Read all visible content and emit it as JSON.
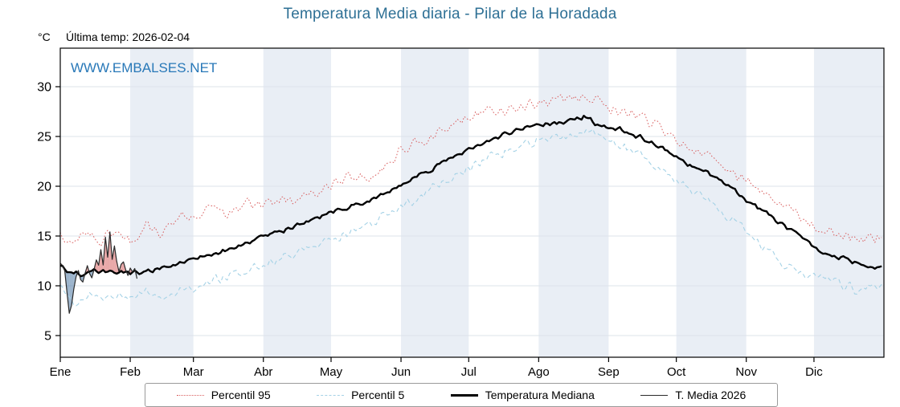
{
  "page": {
    "title": "Temperatura Media diaria - Pilar de la Horadada",
    "unit_label": "°C",
    "last_temp": "Última temp: 2026-02-04",
    "watermark": "WWW.EMBALSES.NET"
  },
  "colors": {
    "title": "#2e7095",
    "watermark": "#2878b8",
    "p95": "#d95f5f",
    "p5": "#a5d2e6",
    "median": "#000000",
    "t2026": "#2a2a2a",
    "band": "#e9eef5",
    "grid": "#dde3ea",
    "fill_above": "rgba(214,96,96,0.55)",
    "fill_below": "rgba(90,130,170,0.6)"
  },
  "chart_data": {
    "type": "line",
    "title": "Temperatura Media diaria - Pilar de la Horadada",
    "ylabel": "°C",
    "x_unit": "day_of_year",
    "xlim_days": [
      0,
      365
    ],
    "ylim": [
      2.8,
      33.9
    ],
    "yticks": [
      5,
      10,
      15,
      20,
      25,
      30
    ],
    "months": [
      "Ene",
      "Feb",
      "Mar",
      "Abr",
      "May",
      "Jun",
      "Jul",
      "Ago",
      "Sep",
      "Oct",
      "Nov",
      "Dic"
    ],
    "month_start_days": [
      0,
      31,
      59,
      90,
      120,
      151,
      181,
      212,
      243,
      273,
      304,
      334
    ],
    "legend_position": "bottom",
    "grid": true,
    "series": [
      {
        "name": "Percentil 95",
        "key": "p95",
        "style": "dotted",
        "range": [
          0,
          364
        ],
        "noise": 0.7,
        "anchors": [
          [
            0,
            15.2
          ],
          [
            6,
            14.3
          ],
          [
            12,
            15.6
          ],
          [
            18,
            14.6
          ],
          [
            24,
            15.8
          ],
          [
            31,
            14.3
          ],
          [
            38,
            16.4
          ],
          [
            45,
            15.0
          ],
          [
            52,
            16.8
          ],
          [
            59,
            17.0
          ],
          [
            66,
            17.6
          ],
          [
            74,
            17.2
          ],
          [
            82,
            18.4
          ],
          [
            90,
            18.0
          ],
          [
            98,
            19.0
          ],
          [
            105,
            18.4
          ],
          [
            112,
            19.4
          ],
          [
            120,
            20.2
          ],
          [
            128,
            21.0
          ],
          [
            135,
            20.6
          ],
          [
            143,
            21.8
          ],
          [
            151,
            23.6
          ],
          [
            160,
            24.6
          ],
          [
            166,
            25.2
          ],
          [
            174,
            26.2
          ],
          [
            181,
            26.9
          ],
          [
            189,
            27.5
          ],
          [
            196,
            27.7
          ],
          [
            204,
            28.1
          ],
          [
            212,
            28.4
          ],
          [
            220,
            28.6
          ],
          [
            228,
            28.8
          ],
          [
            235,
            28.9
          ],
          [
            243,
            27.9
          ],
          [
            250,
            27.5
          ],
          [
            258,
            26.9
          ],
          [
            265,
            26.0
          ],
          [
            273,
            24.6
          ],
          [
            281,
            23.6
          ],
          [
            288,
            23.0
          ],
          [
            296,
            21.6
          ],
          [
            304,
            20.4
          ],
          [
            312,
            19.4
          ],
          [
            319,
            18.4
          ],
          [
            327,
            17.0
          ],
          [
            334,
            16.0
          ],
          [
            342,
            15.4
          ],
          [
            349,
            15.0
          ],
          [
            356,
            14.6
          ],
          [
            364,
            14.9
          ]
        ]
      },
      {
        "name": "Percentil 5",
        "key": "p5",
        "style": "dashed",
        "range": [
          0,
          364
        ],
        "noise": 0.6,
        "anchors": [
          [
            0,
            10.2
          ],
          [
            3,
            9.0
          ],
          [
            6,
            7.9
          ],
          [
            10,
            8.8
          ],
          [
            15,
            9.2
          ],
          [
            20,
            8.6
          ],
          [
            26,
            9.0
          ],
          [
            31,
            8.7
          ],
          [
            38,
            9.3
          ],
          [
            45,
            8.9
          ],
          [
            52,
            9.6
          ],
          [
            59,
            9.9
          ],
          [
            66,
            10.4
          ],
          [
            74,
            10.9
          ],
          [
            82,
            11.5
          ],
          [
            90,
            12.1
          ],
          [
            98,
            12.8
          ],
          [
            105,
            13.2
          ],
          [
            112,
            13.9
          ],
          [
            120,
            14.6
          ],
          [
            128,
            15.3
          ],
          [
            135,
            15.9
          ],
          [
            143,
            16.8
          ],
          [
            151,
            17.9
          ],
          [
            160,
            19.0
          ],
          [
            166,
            19.9
          ],
          [
            174,
            21.0
          ],
          [
            181,
            21.9
          ],
          [
            189,
            22.8
          ],
          [
            196,
            23.4
          ],
          [
            204,
            24.1
          ],
          [
            212,
            24.7
          ],
          [
            220,
            25.0
          ],
          [
            228,
            25.3
          ],
          [
            235,
            25.4
          ],
          [
            243,
            24.6
          ],
          [
            250,
            23.9
          ],
          [
            258,
            23.0
          ],
          [
            265,
            22.0
          ],
          [
            273,
            20.7
          ],
          [
            281,
            19.5
          ],
          [
            288,
            18.4
          ],
          [
            296,
            16.9
          ],
          [
            304,
            15.4
          ],
          [
            312,
            13.8
          ],
          [
            319,
            12.4
          ],
          [
            327,
            11.6
          ],
          [
            334,
            11.0
          ],
          [
            342,
            10.4
          ],
          [
            349,
            10.0
          ],
          [
            354,
            9.2
          ],
          [
            358,
            9.8
          ],
          [
            364,
            10.3
          ]
        ]
      },
      {
        "name": "Temperatura Mediana",
        "key": "median",
        "style": "solid-thick",
        "range": [
          0,
          364
        ],
        "noise": 0.3,
        "anchors": [
          [
            0,
            12.0
          ],
          [
            4,
            11.4
          ],
          [
            10,
            11.2
          ],
          [
            15,
            11.5
          ],
          [
            20,
            11.3
          ],
          [
            31,
            11.3
          ],
          [
            40,
            11.5
          ],
          [
            50,
            12.0
          ],
          [
            59,
            12.8
          ],
          [
            74,
            13.6
          ],
          [
            90,
            15.0
          ],
          [
            105,
            16.0
          ],
          [
            120,
            17.4
          ],
          [
            135,
            18.4
          ],
          [
            151,
            20.2
          ],
          [
            166,
            21.9
          ],
          [
            181,
            23.7
          ],
          [
            196,
            25.1
          ],
          [
            212,
            26.2
          ],
          [
            222,
            26.4
          ],
          [
            232,
            27.0
          ],
          [
            238,
            26.2
          ],
          [
            243,
            26.0
          ],
          [
            250,
            25.6
          ],
          [
            258,
            24.8
          ],
          [
            265,
            24.0
          ],
          [
            273,
            23.0
          ],
          [
            280,
            22.0
          ],
          [
            288,
            21.2
          ],
          [
            296,
            20.0
          ],
          [
            304,
            18.6
          ],
          [
            312,
            17.4
          ],
          [
            319,
            16.2
          ],
          [
            327,
            15.0
          ],
          [
            334,
            13.8
          ],
          [
            342,
            13.0
          ],
          [
            349,
            12.6
          ],
          [
            356,
            12.2
          ],
          [
            364,
            11.8
          ]
        ]
      },
      {
        "name": "T. Media 2026",
        "key": "t2026",
        "style": "solid-thin",
        "range": [
          0,
          34
        ],
        "noise": 0.15,
        "anchors": [
          [
            0,
            12.2
          ],
          [
            1,
            12.0
          ],
          [
            2,
            11.4
          ],
          [
            3,
            9.2
          ],
          [
            4,
            7.2
          ],
          [
            5,
            8.0
          ],
          [
            6,
            9.6
          ],
          [
            7,
            10.8
          ],
          [
            8,
            11.4
          ],
          [
            9,
            10.6
          ],
          [
            10,
            10.4
          ],
          [
            11,
            11.2
          ],
          [
            12,
            11.9
          ],
          [
            13,
            11.1
          ],
          [
            14,
            10.8
          ],
          [
            15,
            11.6
          ],
          [
            16,
            12.6
          ],
          [
            17,
            12.1
          ],
          [
            18,
            13.6
          ],
          [
            19,
            12.1
          ],
          [
            20,
            14.9
          ],
          [
            21,
            12.9
          ],
          [
            22,
            15.4
          ],
          [
            23,
            12.6
          ],
          [
            24,
            13.9
          ],
          [
            25,
            12.4
          ],
          [
            26,
            11.4
          ],
          [
            27,
            12.1
          ],
          [
            28,
            12.4
          ],
          [
            29,
            11.6
          ],
          [
            30,
            11.1
          ],
          [
            31,
            11.9
          ],
          [
            32,
            11.4
          ],
          [
            33,
            11.7
          ],
          [
            34,
            10.7
          ]
        ]
      }
    ],
    "fill_between": {
      "series_a": "T. Media 2026",
      "series_b": "Temperatura Mediana",
      "above_color_key": "fill_above",
      "below_color_key": "fill_below",
      "range": [
        0,
        34
      ]
    }
  }
}
